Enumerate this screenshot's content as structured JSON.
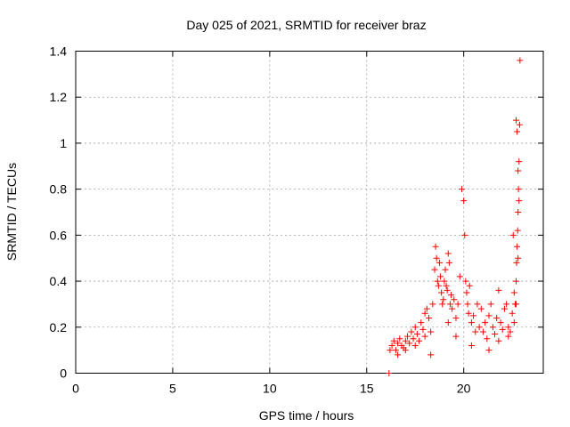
{
  "chart_data": {
    "type": "scatter",
    "title": "Day 025 of 2021, SRMTID for receiver braz",
    "xlabel": "GPS time / hours",
    "ylabel": "SRMTID / TECUs",
    "xlim": [
      0,
      24.1
    ],
    "ylim": [
      0,
      1.4
    ],
    "x_ticks": [
      0,
      5,
      10,
      15,
      20
    ],
    "x_tick_labels": [
      "0",
      "5",
      "10",
      "15",
      "20"
    ],
    "y_ticks": [
      0,
      0.2,
      0.4,
      0.6,
      0.8,
      1,
      1.2,
      1.4
    ],
    "y_tick_labels": [
      "0",
      "0.2",
      "0.4",
      "0.6",
      "0.8",
      "1",
      "1.2",
      "1.4"
    ],
    "grid": true,
    "marker": "+",
    "series": [
      {
        "name": "SRMTID",
        "color": "#ff0000",
        "x": [
          16.15,
          16.2,
          16.3,
          16.4,
          16.5,
          16.6,
          16.7,
          16.8,
          16.9,
          17.0,
          17.1,
          17.2,
          17.3,
          17.4,
          17.5,
          17.6,
          17.7,
          17.8,
          17.9,
          18.0,
          18.1,
          18.2,
          18.3,
          18.4,
          18.5,
          18.55,
          18.6,
          18.65,
          18.7,
          18.75,
          18.8,
          18.85,
          18.9,
          18.95,
          19.0,
          19.05,
          19.1,
          19.15,
          19.2,
          19.25,
          19.3,
          19.35,
          19.4,
          19.5,
          19.6,
          19.7,
          19.8,
          19.9,
          20.0,
          20.05,
          20.1,
          20.15,
          20.2,
          20.25,
          20.3,
          20.4,
          20.5,
          20.6,
          20.7,
          20.8,
          20.9,
          21.0,
          21.1,
          21.2,
          21.3,
          21.4,
          21.5,
          21.6,
          21.7,
          21.8,
          21.9,
          22.0,
          22.1,
          22.2,
          22.3,
          22.4,
          22.5,
          22.6,
          22.65,
          22.7,
          22.72,
          22.75,
          22.78,
          22.8,
          22.82,
          22.85,
          22.88,
          22.9,
          22.7,
          22.75,
          22.8,
          22.85,
          22.6,
          22.7,
          22.8,
          22.55,
          16.6,
          17.0,
          17.5,
          18.0,
          18.3,
          19.2,
          19.6,
          20.4,
          21.3,
          21.8,
          22.3
        ],
        "y": [
          0.0,
          0.1,
          0.12,
          0.14,
          0.1,
          0.13,
          0.15,
          0.12,
          0.11,
          0.14,
          0.16,
          0.13,
          0.18,
          0.15,
          0.2,
          0.17,
          0.14,
          0.22,
          0.19,
          0.16,
          0.28,
          0.24,
          0.18,
          0.3,
          0.45,
          0.55,
          0.5,
          0.4,
          0.38,
          0.48,
          0.42,
          0.35,
          0.3,
          0.32,
          0.4,
          0.45,
          0.38,
          0.36,
          0.52,
          0.48,
          0.3,
          0.34,
          0.28,
          0.32,
          0.24,
          0.3,
          0.42,
          0.8,
          0.75,
          0.6,
          0.4,
          0.35,
          0.3,
          0.26,
          0.38,
          0.22,
          0.25,
          0.18,
          0.3,
          0.2,
          0.28,
          0.18,
          0.22,
          0.15,
          0.25,
          0.3,
          0.2,
          0.17,
          0.24,
          0.36,
          0.22,
          0.19,
          0.28,
          0.3,
          0.2,
          0.18,
          0.26,
          0.35,
          0.3,
          0.4,
          0.48,
          0.55,
          0.62,
          0.7,
          0.8,
          0.92,
          1.08,
          1.36,
          1.1,
          1.05,
          0.88,
          0.75,
          0.22,
          0.3,
          0.5,
          0.6,
          0.08,
          0.1,
          0.12,
          0.26,
          0.08,
          0.22,
          0.16,
          0.12,
          0.1,
          0.14,
          0.16
        ]
      }
    ]
  }
}
